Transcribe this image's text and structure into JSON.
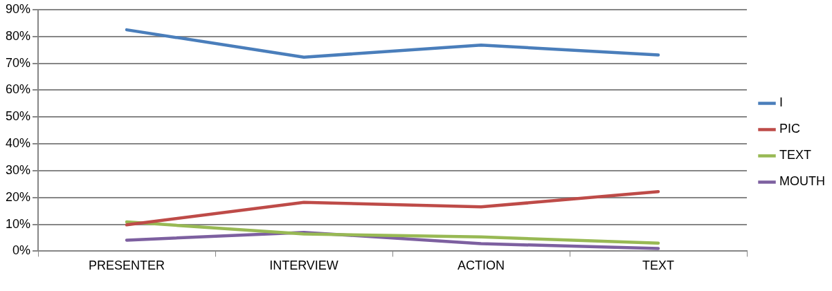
{
  "chart_data": {
    "type": "line",
    "categories": [
      "PRESENTER",
      "INTERVIEW",
      "ACTION",
      "TEXT"
    ],
    "series": [
      {
        "name": "I",
        "color": "#4a7ebb",
        "values": [
          82.5,
          72.3,
          76.8,
          73.1
        ]
      },
      {
        "name": "PIC",
        "color": "#be4b48",
        "values": [
          9.8,
          18.2,
          16.5,
          22.2
        ]
      },
      {
        "name": "TEXT",
        "color": "#98b954",
        "values": [
          10.9,
          6.4,
          5.3,
          3.0
        ]
      },
      {
        "name": "MOUTH",
        "color": "#7d60a0",
        "values": [
          4.1,
          7.0,
          2.8,
          1.0
        ]
      }
    ],
    "ylim": [
      0,
      90
    ],
    "yticks": [
      {
        "value": 0,
        "label": "0%"
      },
      {
        "value": 10,
        "label": "10%"
      },
      {
        "value": 20,
        "label": "20%"
      },
      {
        "value": 30,
        "label": "30%"
      },
      {
        "value": 40,
        "label": "40%"
      },
      {
        "value": 50,
        "label": "50%"
      },
      {
        "value": 60,
        "label": "60%"
      },
      {
        "value": 70,
        "label": "70%"
      },
      {
        "value": 80,
        "label": "80%"
      },
      {
        "value": 90,
        "label": "90%"
      }
    ],
    "grid": "y",
    "legend": "right",
    "marker": "none",
    "line_style": "solid"
  }
}
